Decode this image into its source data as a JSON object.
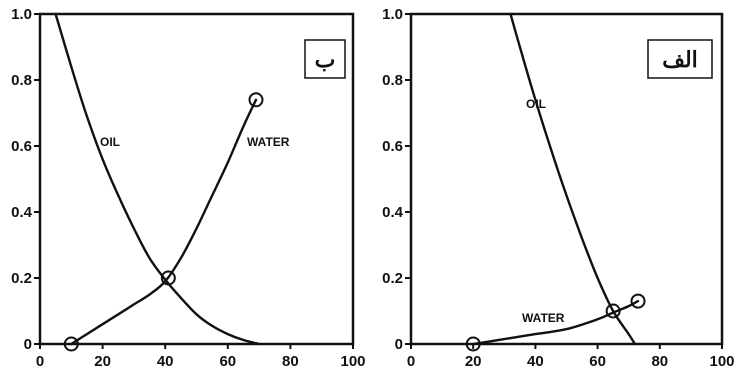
{
  "chart_data": [
    {
      "type": "line",
      "panel_label": "ب",
      "xlim": [
        0,
        100
      ],
      "ylim": [
        0,
        1.0
      ],
      "x_ticks": [
        "0",
        "20",
        "40",
        "60",
        "80",
        "100"
      ],
      "y_ticks": [
        "0",
        "0.2",
        "0.4",
        "0.6",
        "0.8",
        "1.0"
      ],
      "grid": false,
      "series": [
        {
          "name": "OIL",
          "x": [
            5,
            10,
            15,
            20,
            25,
            30,
            35,
            40,
            45,
            50,
            55,
            60,
            65,
            70
          ],
          "y": [
            1.0,
            0.84,
            0.69,
            0.56,
            0.45,
            0.35,
            0.26,
            0.195,
            0.14,
            0.09,
            0.055,
            0.03,
            0.012,
            0.0
          ]
        },
        {
          "name": "WATER",
          "x": [
            10,
            15,
            20,
            25,
            30,
            35,
            40,
            45,
            50,
            55,
            60,
            65,
            69
          ],
          "y": [
            0.0,
            0.03,
            0.06,
            0.09,
            0.12,
            0.15,
            0.19,
            0.26,
            0.35,
            0.45,
            0.55,
            0.66,
            0.74
          ]
        }
      ],
      "markers": [
        {
          "x": 10,
          "y": 0.0
        },
        {
          "x": 41,
          "y": 0.2
        },
        {
          "x": 69,
          "y": 0.74
        }
      ]
    },
    {
      "type": "line",
      "panel_label": "الف",
      "xlim": [
        0,
        100
      ],
      "ylim": [
        0,
        1.0
      ],
      "x_ticks": [
        "0",
        "20",
        "40",
        "60",
        "80",
        "100"
      ],
      "y_ticks": [
        "0",
        "0.2",
        "0.4",
        "0.6",
        "0.8",
        "1.0"
      ],
      "grid": false,
      "series": [
        {
          "name": "OIL",
          "x": [
            32,
            35,
            40,
            45,
            50,
            55,
            60,
            65,
            70,
            72
          ],
          "y": [
            1.0,
            0.9,
            0.74,
            0.59,
            0.45,
            0.32,
            0.2,
            0.1,
            0.03,
            0.0
          ]
        },
        {
          "name": "WATER",
          "x": [
            20,
            30,
            40,
            50,
            60,
            65,
            70,
            73
          ],
          "y": [
            0.0,
            0.015,
            0.03,
            0.045,
            0.075,
            0.095,
            0.115,
            0.13
          ]
        }
      ],
      "markers": [
        {
          "x": 20,
          "y": 0.0
        },
        {
          "x": 65,
          "y": 0.1
        },
        {
          "x": 73,
          "y": 0.13
        }
      ]
    }
  ]
}
